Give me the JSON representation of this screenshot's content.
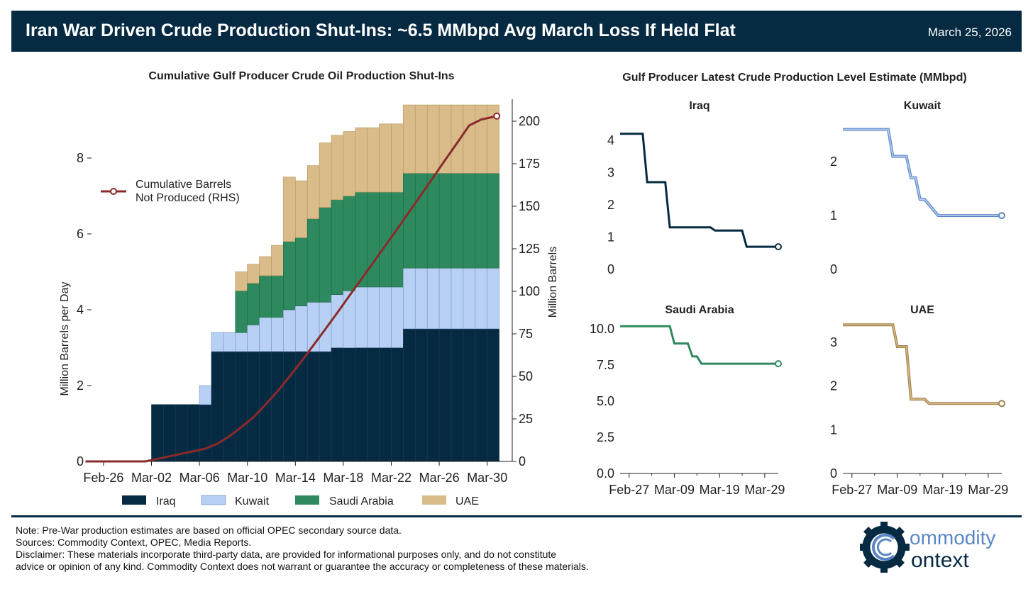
{
  "header": {
    "title": "Iran War Driven Crude Production Shut-Ins: ~6.5 MMbpd Avg March Loss If Held Flat",
    "date": "March 25, 2026"
  },
  "colors": {
    "header_bg": "#062a42",
    "iraq": "#062a42",
    "kuwait": "#b9d0f5",
    "saudi": "#2e8a5e",
    "uae": "#d9bc8a",
    "cumulative": "#8b2a2a"
  },
  "chart_data": [
    {
      "type": "bar",
      "stacked": true,
      "title": "Cumulative Gulf Producer Crude Oil Production Shut-Ins",
      "ylabel": "Million Barrels per Day",
      "y2label": "Million Barrels",
      "ylim": [
        0,
        9.3
      ],
      "y2lim": [
        0,
        205
      ],
      "yticks": [
        0,
        2,
        4,
        6,
        8
      ],
      "y2ticks": [
        0,
        25,
        50,
        75,
        100,
        125,
        150,
        175,
        200
      ],
      "x_tick_labels": [
        "Feb-26",
        "Mar-02",
        "Mar-06",
        "Mar-10",
        "Mar-14",
        "Mar-18",
        "Mar-22",
        "Mar-26",
        "Mar-30"
      ],
      "x_tick_days": [
        0,
        4,
        8,
        12,
        16,
        20,
        24,
        28,
        32
      ],
      "bar_start_day": 5,
      "series": [
        {
          "name": "Iraq",
          "values": [
            1.5,
            1.5,
            1.5,
            1.5,
            1.5,
            2.9,
            2.9,
            2.9,
            2.9,
            2.9,
            2.9,
            2.9,
            2.9,
            2.9,
            2.9,
            3.0,
            3.0,
            3.0,
            3.0,
            3.0,
            3.0,
            3.5,
            3.5,
            3.5,
            3.5,
            3.5,
            3.5,
            3.5,
            3.5
          ]
        },
        {
          "name": "Kuwait",
          "values": [
            0,
            0,
            0,
            0,
            0.5,
            0.5,
            0.5,
            0.5,
            0.7,
            0.9,
            0.9,
            1.1,
            1.2,
            1.3,
            1.3,
            1.4,
            1.5,
            1.6,
            1.6,
            1.6,
            1.6,
            1.6,
            1.6,
            1.6,
            1.6,
            1.6,
            1.6,
            1.6,
            1.6
          ]
        },
        {
          "name": "Saudi Arabia",
          "values": [
            0,
            0,
            0,
            0,
            0,
            0,
            0,
            1.1,
            1.1,
            1.1,
            1.1,
            1.8,
            1.8,
            2.2,
            2.5,
            2.5,
            2.5,
            2.5,
            2.5,
            2.5,
            2.5,
            2.5,
            2.5,
            2.5,
            2.5,
            2.5,
            2.5,
            2.5,
            2.5
          ]
        },
        {
          "name": "UAE",
          "values": [
            0,
            0,
            0,
            0,
            0,
            0,
            0,
            0.5,
            0.5,
            0.5,
            0.8,
            1.7,
            1.5,
            1.4,
            1.7,
            1.7,
            1.7,
            1.7,
            1.7,
            1.8,
            1.8,
            1.8,
            1.8,
            1.8,
            1.8,
            1.8,
            1.8,
            1.8,
            1.8
          ]
        }
      ],
      "line": {
        "name": "Cumulative Barrels Not Produced (RHS)",
        "legend_line1": "Cumulative Barrels",
        "legend_line2": "Not Produced (RHS)",
        "days": [
          -1,
          0,
          1,
          2,
          3,
          4,
          5,
          6,
          7,
          8,
          9,
          10,
          11,
          12,
          13,
          14,
          15,
          16,
          17,
          18,
          19,
          20,
          21,
          22,
          23,
          24,
          25,
          26,
          27,
          28,
          29,
          30,
          31,
          32,
          33,
          34
        ],
        "values": [
          0,
          0,
          0,
          0,
          0,
          0,
          1.5,
          3,
          4.5,
          6,
          7.5,
          10.4,
          14.8,
          20.2,
          25.9,
          33.3,
          41.1,
          49.8,
          58.8,
          68.2,
          77.7,
          87.4,
          97.3,
          107.1,
          116.9,
          126.8,
          136.7,
          146.7,
          156.9,
          167,
          177.2,
          187.3,
          197.5,
          201,
          201,
          201
        ],
        "end_marker_day": 33.8,
        "end_marker_value": 203
      }
    },
    {
      "type": "line",
      "title": "Gulf Producer Latest Crude Production Level Estimate (MMbpd)",
      "x_tick_labels": [
        "Feb-27",
        "Mar-09",
        "Mar-19",
        "Mar-29"
      ],
      "x_tick_days": [
        1,
        11,
        21,
        31
      ],
      "panels": [
        {
          "name": "Iraq",
          "double_line": false,
          "ylim": [
            0,
            4.5
          ],
          "yticks": [
            "0",
            "1",
            "2",
            "3",
            "4"
          ],
          "ytick_values": [
            0,
            1,
            2,
            3,
            4
          ],
          "x": [
            -1,
            4,
            5,
            9,
            10,
            19,
            20,
            26,
            27,
            34
          ],
          "values": [
            4.2,
            4.2,
            2.7,
            2.7,
            1.3,
            1.3,
            1.2,
            1.2,
            0.7,
            0.7
          ]
        },
        {
          "name": "Kuwait",
          "double_line": true,
          "ylim": [
            0,
            2.7
          ],
          "yticks": [
            "0",
            "1",
            "2"
          ],
          "ytick_values": [
            0,
            1,
            2
          ],
          "x": [
            -1,
            9,
            10,
            13,
            14,
            15,
            16,
            17,
            18,
            20,
            34
          ],
          "values": [
            2.6,
            2.6,
            2.1,
            2.1,
            1.7,
            1.7,
            1.3,
            1.3,
            1.2,
            1.0,
            1.0
          ]
        },
        {
          "name": "Saudi Arabia",
          "double_line": false,
          "ylim": [
            0,
            10.6
          ],
          "yticks": [
            "0.0",
            "2.5",
            "5.0",
            "7.5",
            "10.0"
          ],
          "ytick_values": [
            0,
            2.5,
            5,
            7.5,
            10
          ],
          "x": [
            -1,
            10,
            11,
            14,
            15,
            16,
            17,
            18,
            34
          ],
          "values": [
            10.2,
            10.2,
            9.0,
            9.0,
            8.1,
            8.1,
            7.6,
            7.6,
            7.6
          ]
        },
        {
          "name": "UAE",
          "double_line": true,
          "ylim": [
            0,
            3.5
          ],
          "yticks": [
            "0",
            "1",
            "2",
            "3"
          ],
          "ytick_values": [
            0,
            1,
            2,
            3
          ],
          "x": [
            -1,
            10,
            11,
            13,
            14,
            17,
            18,
            34
          ],
          "values": [
            3.4,
            3.4,
            2.9,
            2.9,
            1.7,
            1.7,
            1.6,
            1.6
          ]
        }
      ]
    }
  ],
  "footer": {
    "note": "Note: Pre-War production estimates are based on official OPEC secondary source data.",
    "sources": "Sources: Commodity Context, OPEC, Media Reports.",
    "disclaimer_1": "Disclaimer: These materials incorporate third-party data, are provided for informational purposes only, and do not constitute",
    "disclaimer_2": "advice or opinion of any kind. Commodity Context does not warrant or guarantee the accuracy or completeness of these materials."
  },
  "logo": {
    "line1": "ommodity",
    "line2": "ontext"
  }
}
